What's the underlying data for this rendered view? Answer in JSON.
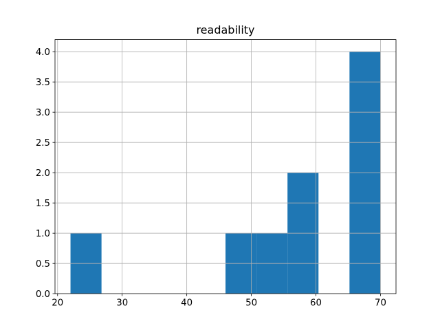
{
  "figure": {
    "title": "readability",
    "background": "#ffffff",
    "colors": {
      "bar": "#1f77b4",
      "grid": "#b0b0b0",
      "spine": "#000000",
      "text": "#000000"
    }
  },
  "chart_data": {
    "type": "bar",
    "subtype": "histogram",
    "title": "readability",
    "xlabel": "",
    "ylabel": "",
    "bin_edges": [
      22,
      26.8,
      31.6,
      36.4,
      41.2,
      46,
      50.8,
      55.6,
      60.4,
      65.2,
      70
    ],
    "counts": [
      1,
      0,
      0,
      0,
      0,
      1,
      1,
      2,
      0,
      4
    ],
    "xlim": [
      19.6,
      72.4
    ],
    "ylim": [
      0,
      4.2
    ],
    "xticks": [
      20,
      30,
      40,
      50,
      60,
      70
    ],
    "xtick_labels": [
      "20",
      "30",
      "40",
      "50",
      "60",
      "70"
    ],
    "yticks": [
      0,
      0.5,
      1,
      1.5,
      2,
      2.5,
      3,
      3.5,
      4
    ],
    "ytick_labels": [
      "0.0",
      "0.5",
      "1.0",
      "1.5",
      "2.0",
      "2.5",
      "3.0",
      "3.5",
      "4.0"
    ],
    "grid": true,
    "grid_above_bars": true,
    "legend": false,
    "bar_color": "#1f77b4"
  }
}
